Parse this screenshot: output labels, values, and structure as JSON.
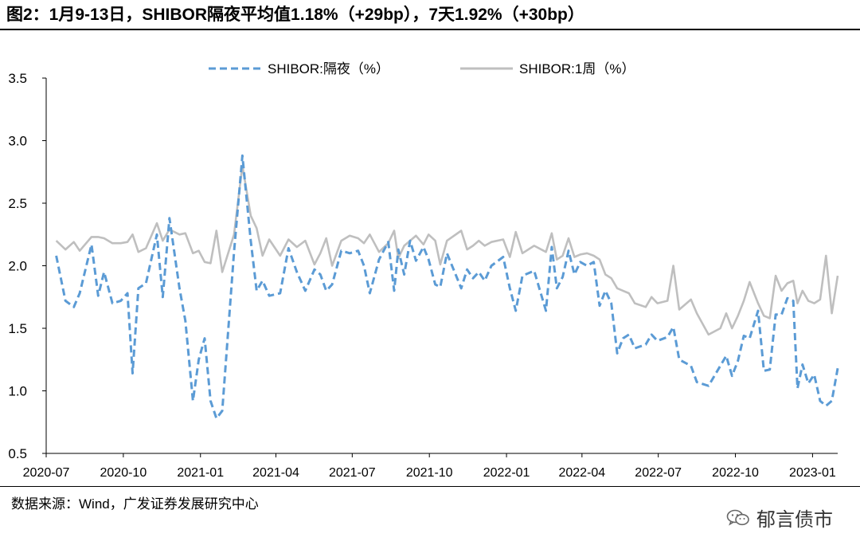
{
  "title": "图2：1月9-13日，SHIBOR隔夜平均值1.18%（+29bp），7天1.92%（+30bp）",
  "source": "数据来源：Wind，广发证券发展研究中心",
  "watermark": {
    "text": "郁言债市",
    "icon": "wechat-icon"
  },
  "chart_data": {
    "type": "line",
    "x_ticks": [
      "2020-07",
      "2020-10",
      "2021-01",
      "2021-04",
      "2021-07",
      "2021-10",
      "2022-01",
      "2022-04",
      "2022-07",
      "2022-10",
      "2023-01"
    ],
    "y_ticks": [
      "3.5",
      "3.0",
      "2.5",
      "2.0",
      "1.5",
      "1.0",
      "0.5"
    ],
    "ylim": [
      0.5,
      3.5
    ],
    "xlim": [
      "2020-07-01",
      "2023-01-31"
    ],
    "grid": false,
    "legend_position": "top",
    "series": [
      {
        "name": "SHIBOR:隔夜（%）",
        "color": "#5B9BD5",
        "style": "dashed",
        "points": [
          [
            "2020-07-13",
            2.08
          ],
          [
            "2020-07-24",
            1.72
          ],
          [
            "2020-08-03",
            1.67
          ],
          [
            "2020-08-10",
            1.78
          ],
          [
            "2020-08-24",
            2.17
          ],
          [
            "2020-09-01",
            1.76
          ],
          [
            "2020-09-08",
            1.95
          ],
          [
            "2020-09-18",
            1.7
          ],
          [
            "2020-09-28",
            1.72
          ],
          [
            "2020-10-06",
            1.78
          ],
          [
            "2020-10-12",
            1.14
          ],
          [
            "2020-10-19",
            1.82
          ],
          [
            "2020-10-28",
            1.86
          ],
          [
            "2020-11-10",
            2.25
          ],
          [
            "2020-11-17",
            1.75
          ],
          [
            "2020-11-25",
            2.38
          ],
          [
            "2020-12-07",
            1.82
          ],
          [
            "2020-12-14",
            1.56
          ],
          [
            "2020-12-23",
            0.92
          ],
          [
            "2020-12-30",
            1.25
          ],
          [
            "2021-01-06",
            1.42
          ],
          [
            "2021-01-13",
            0.92
          ],
          [
            "2021-01-20",
            0.78
          ],
          [
            "2021-01-27",
            0.84
          ],
          [
            "2021-02-10",
            2.11
          ],
          [
            "2021-02-20",
            2.88
          ],
          [
            "2021-03-02",
            2.2
          ],
          [
            "2021-03-09",
            1.8
          ],
          [
            "2021-03-16",
            1.88
          ],
          [
            "2021-03-24",
            1.76
          ],
          [
            "2021-04-06",
            1.78
          ],
          [
            "2021-04-16",
            2.14
          ],
          [
            "2021-04-26",
            1.95
          ],
          [
            "2021-05-06",
            1.8
          ],
          [
            "2021-05-17",
            1.97
          ],
          [
            "2021-05-24",
            1.93
          ],
          [
            "2021-05-31",
            1.8
          ],
          [
            "2021-06-07",
            1.85
          ],
          [
            "2021-06-18",
            2.12
          ],
          [
            "2021-06-28",
            2.1
          ],
          [
            "2021-07-08",
            2.12
          ],
          [
            "2021-07-15",
            2.0
          ],
          [
            "2021-07-22",
            1.78
          ],
          [
            "2021-08-02",
            2.05
          ],
          [
            "2021-08-13",
            2.19
          ],
          [
            "2021-08-20",
            1.8
          ],
          [
            "2021-08-25",
            2.13
          ],
          [
            "2021-09-01",
            1.93
          ],
          [
            "2021-09-08",
            2.2
          ],
          [
            "2021-09-15",
            2.04
          ],
          [
            "2021-09-24",
            2.15
          ],
          [
            "2021-09-30",
            2.05
          ],
          [
            "2021-10-08",
            1.85
          ],
          [
            "2021-10-14",
            1.83
          ],
          [
            "2021-10-22",
            2.1
          ],
          [
            "2021-11-08",
            1.82
          ],
          [
            "2021-11-15",
            1.97
          ],
          [
            "2021-11-22",
            1.9
          ],
          [
            "2021-11-29",
            1.95
          ],
          [
            "2021-12-06",
            1.88
          ],
          [
            "2021-12-14",
            2.0
          ],
          [
            "2021-12-28",
            2.07
          ],
          [
            "2022-01-05",
            1.82
          ],
          [
            "2022-01-12",
            1.64
          ],
          [
            "2022-01-20",
            1.92
          ],
          [
            "2022-02-03",
            1.96
          ],
          [
            "2022-02-17",
            1.64
          ],
          [
            "2022-02-24",
            2.15
          ],
          [
            "2022-03-02",
            1.82
          ],
          [
            "2022-03-09",
            1.91
          ],
          [
            "2022-03-16",
            2.12
          ],
          [
            "2022-03-23",
            1.93
          ],
          [
            "2022-03-30",
            2.03
          ],
          [
            "2022-04-07",
            2.0
          ],
          [
            "2022-04-15",
            2.03
          ],
          [
            "2022-04-22",
            1.68
          ],
          [
            "2022-04-29",
            1.8
          ],
          [
            "2022-05-06",
            1.7
          ],
          [
            "2022-05-13",
            1.3
          ],
          [
            "2022-05-20",
            1.42
          ],
          [
            "2022-05-27",
            1.45
          ],
          [
            "2022-06-03",
            1.34
          ],
          [
            "2022-06-16",
            1.37
          ],
          [
            "2022-06-23",
            1.45
          ],
          [
            "2022-06-30",
            1.4
          ],
          [
            "2022-07-12",
            1.43
          ],
          [
            "2022-07-19",
            1.51
          ],
          [
            "2022-07-26",
            1.25
          ],
          [
            "2022-08-09",
            1.2
          ],
          [
            "2022-08-16",
            1.07
          ],
          [
            "2022-08-30",
            1.04
          ],
          [
            "2022-09-13",
            1.2
          ],
          [
            "2022-09-20",
            1.28
          ],
          [
            "2022-09-27",
            1.12
          ],
          [
            "2022-10-04",
            1.24
          ],
          [
            "2022-10-11",
            1.44
          ],
          [
            "2022-10-18",
            1.42
          ],
          [
            "2022-10-28",
            1.64
          ],
          [
            "2022-11-04",
            1.16
          ],
          [
            "2022-11-11",
            1.17
          ],
          [
            "2022-11-18",
            1.61
          ],
          [
            "2022-11-25",
            1.61
          ],
          [
            "2022-12-02",
            1.74
          ],
          [
            "2022-12-09",
            1.72
          ],
          [
            "2022-12-14",
            1.02
          ],
          [
            "2022-12-20",
            1.21
          ],
          [
            "2022-12-27",
            1.06
          ],
          [
            "2023-01-03",
            1.13
          ],
          [
            "2023-01-10",
            0.92
          ],
          [
            "2023-01-17",
            0.88
          ],
          [
            "2023-01-24",
            0.92
          ],
          [
            "2023-01-31",
            1.18
          ]
        ]
      },
      {
        "name": "SHIBOR:1周（%）",
        "color": "#BFBFBF",
        "style": "solid",
        "points": [
          [
            "2020-07-13",
            2.2
          ],
          [
            "2020-07-24",
            2.13
          ],
          [
            "2020-08-03",
            2.19
          ],
          [
            "2020-08-10",
            2.12
          ],
          [
            "2020-08-24",
            2.23
          ],
          [
            "2020-09-01",
            2.23
          ],
          [
            "2020-09-08",
            2.22
          ],
          [
            "2020-09-18",
            2.18
          ],
          [
            "2020-09-28",
            2.18
          ],
          [
            "2020-10-06",
            2.19
          ],
          [
            "2020-10-12",
            2.25
          ],
          [
            "2020-10-19",
            2.11
          ],
          [
            "2020-10-28",
            2.14
          ],
          [
            "2020-11-10",
            2.34
          ],
          [
            "2020-11-17",
            2.2
          ],
          [
            "2020-11-25",
            2.29
          ],
          [
            "2020-12-07",
            2.25
          ],
          [
            "2020-12-14",
            2.26
          ],
          [
            "2020-12-23",
            2.1
          ],
          [
            "2020-12-30",
            2.12
          ],
          [
            "2021-01-06",
            2.03
          ],
          [
            "2021-01-13",
            2.02
          ],
          [
            "2021-01-20",
            2.28
          ],
          [
            "2021-01-27",
            1.95
          ],
          [
            "2021-02-10",
            2.25
          ],
          [
            "2021-02-20",
            2.8
          ],
          [
            "2021-03-02",
            2.4
          ],
          [
            "2021-03-09",
            2.3
          ],
          [
            "2021-03-16",
            2.08
          ],
          [
            "2021-03-24",
            2.21
          ],
          [
            "2021-04-06",
            2.08
          ],
          [
            "2021-04-16",
            2.21
          ],
          [
            "2021-04-26",
            2.15
          ],
          [
            "2021-05-06",
            2.2
          ],
          [
            "2021-05-17",
            2.01
          ],
          [
            "2021-05-24",
            2.1
          ],
          [
            "2021-05-31",
            2.22
          ],
          [
            "2021-06-07",
            2.0
          ],
          [
            "2021-06-18",
            2.2
          ],
          [
            "2021-06-28",
            2.24
          ],
          [
            "2021-07-08",
            2.22
          ],
          [
            "2021-07-15",
            2.18
          ],
          [
            "2021-07-22",
            2.25
          ],
          [
            "2021-08-02",
            2.11
          ],
          [
            "2021-08-13",
            2.18
          ],
          [
            "2021-08-20",
            2.28
          ],
          [
            "2021-08-25",
            2.06
          ],
          [
            "2021-09-01",
            2.16
          ],
          [
            "2021-09-08",
            2.2
          ],
          [
            "2021-09-15",
            2.24
          ],
          [
            "2021-09-24",
            2.17
          ],
          [
            "2021-09-30",
            2.25
          ],
          [
            "2021-10-08",
            2.2
          ],
          [
            "2021-10-14",
            2.01
          ],
          [
            "2021-10-22",
            2.2
          ],
          [
            "2021-11-08",
            2.28
          ],
          [
            "2021-11-15",
            2.13
          ],
          [
            "2021-11-22",
            2.16
          ],
          [
            "2021-11-29",
            2.2
          ],
          [
            "2021-12-06",
            2.16
          ],
          [
            "2021-12-14",
            2.19
          ],
          [
            "2021-12-28",
            2.21
          ],
          [
            "2022-01-05",
            2.07
          ],
          [
            "2022-01-12",
            2.27
          ],
          [
            "2022-01-20",
            2.1
          ],
          [
            "2022-02-03",
            2.16
          ],
          [
            "2022-02-17",
            2.11
          ],
          [
            "2022-02-24",
            2.26
          ],
          [
            "2022-03-02",
            2.05
          ],
          [
            "2022-03-09",
            2.08
          ],
          [
            "2022-03-16",
            2.22
          ],
          [
            "2022-03-23",
            2.07
          ],
          [
            "2022-03-30",
            2.09
          ],
          [
            "2022-04-07",
            2.1
          ],
          [
            "2022-04-15",
            2.08
          ],
          [
            "2022-04-22",
            2.05
          ],
          [
            "2022-04-29",
            1.93
          ],
          [
            "2022-05-06",
            1.9
          ],
          [
            "2022-05-13",
            1.82
          ],
          [
            "2022-05-20",
            1.8
          ],
          [
            "2022-05-27",
            1.78
          ],
          [
            "2022-06-03",
            1.7
          ],
          [
            "2022-06-16",
            1.67
          ],
          [
            "2022-06-23",
            1.75
          ],
          [
            "2022-06-30",
            1.7
          ],
          [
            "2022-07-12",
            1.72
          ],
          [
            "2022-07-19",
            2.0
          ],
          [
            "2022-07-26",
            1.65
          ],
          [
            "2022-08-09",
            1.73
          ],
          [
            "2022-08-16",
            1.62
          ],
          [
            "2022-08-30",
            1.45
          ],
          [
            "2022-09-13",
            1.5
          ],
          [
            "2022-09-20",
            1.62
          ],
          [
            "2022-09-27",
            1.5
          ],
          [
            "2022-10-04",
            1.6
          ],
          [
            "2022-10-11",
            1.72
          ],
          [
            "2022-10-18",
            1.87
          ],
          [
            "2022-10-28",
            1.7
          ],
          [
            "2022-11-04",
            1.6
          ],
          [
            "2022-11-11",
            1.58
          ],
          [
            "2022-11-18",
            1.92
          ],
          [
            "2022-11-25",
            1.8
          ],
          [
            "2022-12-02",
            1.86
          ],
          [
            "2022-12-09",
            1.88
          ],
          [
            "2022-12-14",
            1.7
          ],
          [
            "2022-12-20",
            1.8
          ],
          [
            "2022-12-27",
            1.72
          ],
          [
            "2023-01-03",
            1.7
          ],
          [
            "2023-01-10",
            1.73
          ],
          [
            "2023-01-17",
            2.08
          ],
          [
            "2023-01-24",
            1.62
          ],
          [
            "2023-01-31",
            1.92
          ]
        ]
      }
    ]
  }
}
